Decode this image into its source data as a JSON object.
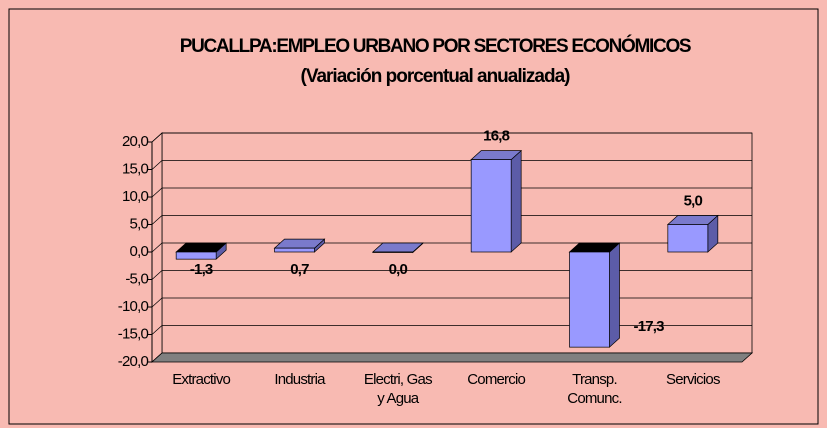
{
  "chart_data": {
    "type": "bar3d",
    "title": "PUCALLPA:EMPLEO URBANO POR SECTORES ECONÓMICOS",
    "subtitle": "(Variación porcentual anualizada)",
    "categories": [
      "Extractivo",
      "Industria",
      "Electri, Gas\ny Agua",
      "Comercio",
      "Transp.\nComunc.",
      "Servicios"
    ],
    "values": [
      -1.3,
      0.7,
      0.0,
      16.8,
      -17.3,
      5.0
    ],
    "value_labels": [
      "-1,3",
      "0,7",
      "0,0",
      "16,8",
      "-17,3",
      "5,0"
    ],
    "color": "#9999ff",
    "ylim": [
      -20,
      20
    ],
    "yticks": [
      {
        "value": -20,
        "label": "-20,0"
      },
      {
        "value": -15,
        "label": "-15,0"
      },
      {
        "value": -10,
        "label": "-10,0"
      },
      {
        "value": -5,
        "label": "-5,0"
      },
      {
        "value": 0,
        "label": "0,0"
      },
      {
        "value": 5,
        "label": "5,0"
      },
      {
        "value": 10,
        "label": "10,0"
      },
      {
        "value": 15,
        "label": "15,0"
      },
      {
        "value": 20,
        "label": "20,0"
      }
    ],
    "grid": true
  }
}
